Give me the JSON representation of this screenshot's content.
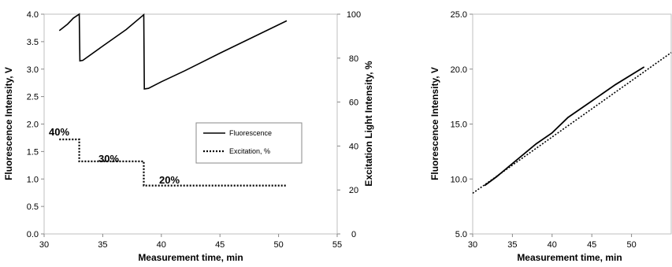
{
  "chart_data": [
    {
      "type": "line",
      "xlabel": "Measurement time, min",
      "ylabel": "Fluorescence Intensity, V",
      "y2label": "Excitation Light Intensity, %",
      "xlim": [
        30,
        55
      ],
      "ylim": [
        0.0,
        4.0
      ],
      "y2lim": [
        0,
        100
      ],
      "xticks": [
        "30",
        "35",
        "40",
        "45",
        "50",
        "55"
      ],
      "yticks": [
        "0.0",
        "0.5",
        "1.0",
        "1.5",
        "2.0",
        "2.5",
        "3.0",
        "3.5",
        "4.0"
      ],
      "y2ticks": [
        "0",
        "20",
        "40",
        "60",
        "80",
        "100"
      ],
      "grid": false,
      "legend_position": "center-right",
      "series": [
        {
          "name": "Fluorescence",
          "axis": "left",
          "style": "solid",
          "x": [
            31.3,
            31.6,
            32.0,
            32.5,
            33.0,
            33.05,
            33.3,
            35.0,
            37.0,
            38.5,
            38.55,
            38.9,
            40.0,
            42.0,
            45.0,
            48.0,
            50.7
          ],
          "y": [
            3.7,
            3.75,
            3.82,
            3.93,
            4.0,
            3.15,
            3.16,
            3.42,
            3.72,
            3.99,
            2.64,
            2.65,
            2.77,
            2.97,
            3.29,
            3.6,
            3.88
          ]
        },
        {
          "name": "Excitation, %",
          "axis": "right",
          "style": "dotted",
          "x": [
            31.3,
            33.0,
            33.0,
            38.5,
            38.5,
            50.7
          ],
          "y": [
            43,
            43,
            33,
            33,
            22,
            22
          ]
        }
      ],
      "annotations": [
        "40%",
        "30%",
        "20%"
      ]
    },
    {
      "type": "line",
      "xlabel": "Measurement time, min",
      "ylabel": "Fluorescence Intensity, V",
      "xlim": [
        30,
        55
      ],
      "ylim": [
        5.0,
        25.0
      ],
      "xticks": [
        "30",
        "35",
        "40",
        "45",
        "50"
      ],
      "yticks": [
        "5.0",
        "10.0",
        "15.0",
        "20.0",
        "25.0"
      ],
      "grid": false,
      "series": [
        {
          "style": "solid",
          "x": [
            31.5,
            33.0,
            35.0,
            38.0,
            40.0,
            42.0,
            45.0,
            48.0,
            51.6
          ],
          "y": [
            9.4,
            10.2,
            11.4,
            13.2,
            14.2,
            15.6,
            17.1,
            18.6,
            20.2
          ]
        },
        {
          "style": "dotted",
          "x": [
            30.0,
            55.0
          ],
          "y": [
            8.7,
            21.5
          ]
        }
      ]
    }
  ]
}
